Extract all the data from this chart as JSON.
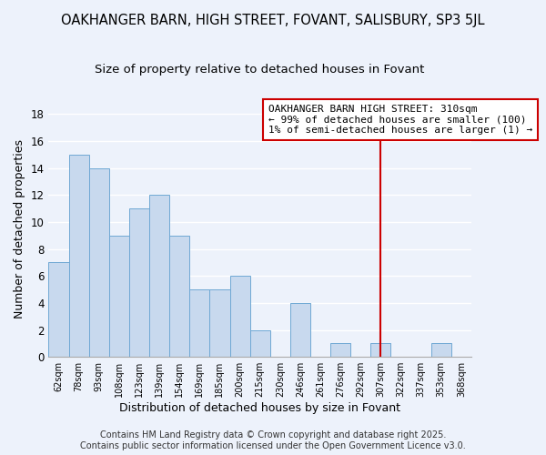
{
  "title": "OAKHANGER BARN, HIGH STREET, FOVANT, SALISBURY, SP3 5JL",
  "subtitle": "Size of property relative to detached houses in Fovant",
  "xlabel": "Distribution of detached houses by size in Fovant",
  "ylabel": "Number of detached properties",
  "bar_color": "#c8d9ee",
  "bar_edge_color": "#6fa8d4",
  "background_color": "#edf2fb",
  "grid_color": "#ffffff",
  "bin_labels": [
    "62sqm",
    "78sqm",
    "93sqm",
    "108sqm",
    "123sqm",
    "139sqm",
    "154sqm",
    "169sqm",
    "185sqm",
    "200sqm",
    "215sqm",
    "230sqm",
    "246sqm",
    "261sqm",
    "276sqm",
    "292sqm",
    "307sqm",
    "322sqm",
    "337sqm",
    "353sqm",
    "368sqm"
  ],
  "bar_heights": [
    7,
    15,
    14,
    9,
    11,
    12,
    9,
    5,
    5,
    6,
    2,
    0,
    4,
    0,
    1,
    0,
    1,
    0,
    0,
    1,
    0
  ],
  "ylim": [
    0,
    19
  ],
  "yticks": [
    0,
    2,
    4,
    6,
    8,
    10,
    12,
    14,
    16,
    18
  ],
  "vline_x_index": 16,
  "vline_color": "#cc0000",
  "annotation_text": "OAKHANGER BARN HIGH STREET: 310sqm\n← 99% of detached houses are smaller (100)\n1% of semi-detached houses are larger (1) →",
  "annotation_box_color": "#ffffff",
  "annotation_box_edge_color": "#cc0000",
  "footer_line1": "Contains HM Land Registry data © Crown copyright and database right 2025.",
  "footer_line2": "Contains public sector information licensed under the Open Government Licence v3.0.",
  "title_fontsize": 10.5,
  "subtitle_fontsize": 9.5,
  "annotation_fontsize": 8,
  "footer_fontsize": 7
}
